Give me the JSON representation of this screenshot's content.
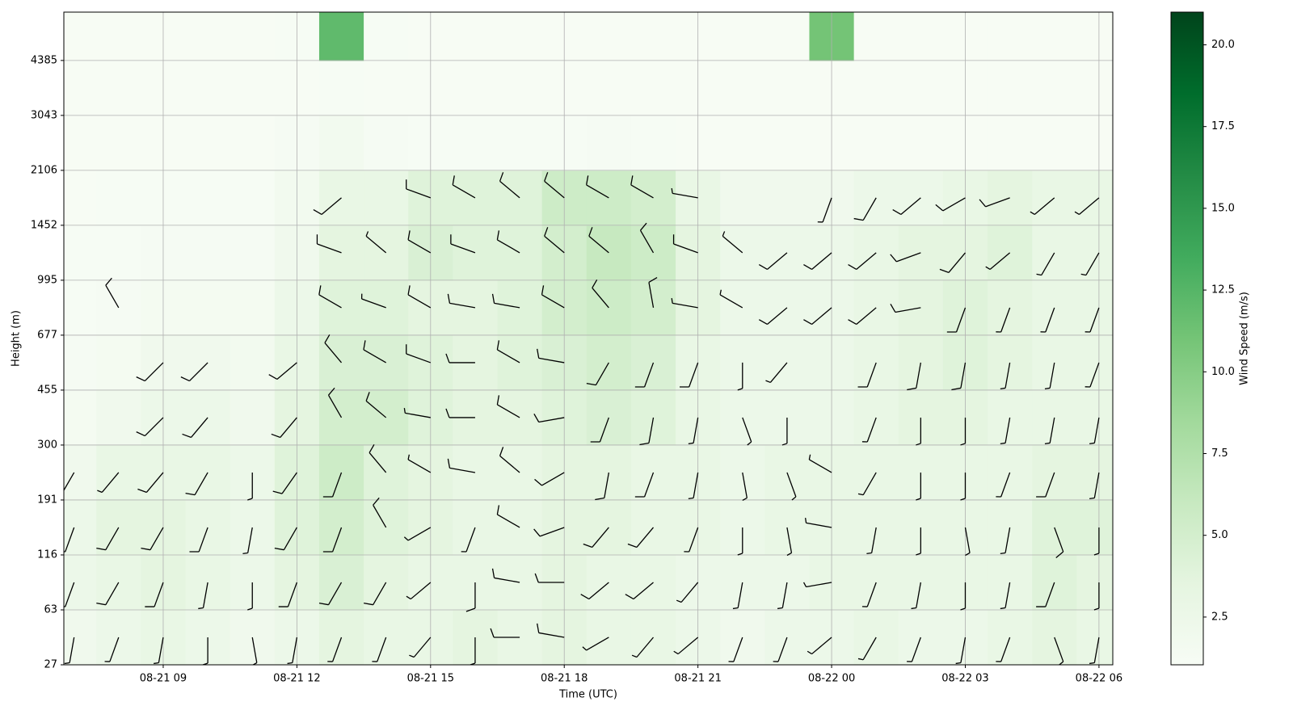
{
  "chart_data": {
    "type": "barbs",
    "xlabel": "Time (UTC)",
    "ylabel": "Height (m)",
    "colorbar_label": "Wind Speed (m/s)",
    "xlim": [
      6.77,
      30.31
    ],
    "xticks": [
      {
        "value": 9,
        "label": "08-21 09"
      },
      {
        "value": 12,
        "label": "08-21 12"
      },
      {
        "value": 15,
        "label": "08-21 15"
      },
      {
        "value": 18,
        "label": "08-21 18"
      },
      {
        "value": 21,
        "label": "08-21 21"
      },
      {
        "value": 24,
        "label": "08-22 00"
      },
      {
        "value": 27,
        "label": "08-22 03"
      },
      {
        "value": 30,
        "label": "08-22 06"
      }
    ],
    "ylim": [
      0,
      11.88
    ],
    "yticks": [
      {
        "value": 0,
        "label": "27"
      },
      {
        "value": 1,
        "label": "63"
      },
      {
        "value": 2,
        "label": "116"
      },
      {
        "value": 3,
        "label": "191"
      },
      {
        "value": 4,
        "label": "300"
      },
      {
        "value": 5,
        "label": "455"
      },
      {
        "value": 6,
        "label": "677"
      },
      {
        "value": 7,
        "label": "995"
      },
      {
        "value": 8,
        "label": "1452"
      },
      {
        "value": 9,
        "label": "2106"
      },
      {
        "value": 10,
        "label": "3043"
      },
      {
        "value": 11,
        "label": "4385"
      }
    ],
    "grid": true,
    "clim": [
      1.04,
      21.0
    ],
    "cticks": [
      {
        "value": 2.5,
        "label": "2.5"
      },
      {
        "value": 5,
        "label": "5.0"
      },
      {
        "value": 7.5,
        "label": "7.5"
      },
      {
        "value": 10,
        "label": "10.0"
      },
      {
        "value": 12.5,
        "label": "12.5"
      },
      {
        "value": 15,
        "label": "15.0"
      },
      {
        "value": 17.5,
        "label": "17.5"
      },
      {
        "value": 20,
        "label": "20.0"
      }
    ],
    "colormap": [
      "#f7fcf5",
      "#e5f5e0",
      "#c7e9c0",
      "#a1d99b",
      "#74c476",
      "#41ab5d",
      "#238b45",
      "#006d2c",
      "#00441b"
    ],
    "barb_color": "#000000",
    "heatmap": {
      "x": [
        7,
        8,
        9,
        10,
        11,
        12,
        13,
        14,
        15,
        16,
        17,
        18,
        19,
        20,
        21,
        22,
        23,
        24,
        25,
        26,
        27,
        28,
        29,
        30
      ],
      "levels": [
        0,
        1,
        2,
        3,
        4,
        5,
        6,
        7,
        8,
        9,
        10,
        11
      ],
      "values": [
        [
          2,
          2.5,
          3,
          2.5,
          2,
          2.5,
          3.5,
          3,
          3,
          3.5,
          3,
          3.5,
          3,
          3,
          2.5,
          2,
          2.5,
          2.5,
          3,
          2.5,
          2.5,
          3,
          3.5,
          3
        ],
        [
          2.5,
          3,
          3.5,
          3,
          2.5,
          3.5,
          4.5,
          3.5,
          3,
          3,
          3,
          3.5,
          3,
          3,
          2.5,
          2.5,
          2.5,
          3,
          3,
          3,
          3,
          3,
          4,
          3.5
        ],
        [
          2.5,
          3.5,
          3.5,
          3,
          2.5,
          4,
          5,
          4,
          3.5,
          3,
          3,
          3.5,
          3.5,
          3,
          3,
          2.5,
          3,
          3,
          3,
          3,
          3,
          3,
          4,
          4
        ],
        [
          2,
          3,
          3,
          3,
          2.5,
          4,
          5.5,
          4,
          3.5,
          3,
          3,
          3.5,
          3.5,
          3,
          3,
          2.5,
          3,
          3,
          3,
          3,
          3,
          3,
          3.5,
          3.5
        ],
        [
          1.5,
          2,
          2.5,
          2.5,
          2,
          3.5,
          5,
          5,
          4,
          3.5,
          3.5,
          4,
          4.5,
          4,
          3,
          2.5,
          2.5,
          2.5,
          3,
          3.5,
          3.5,
          3,
          3,
          3
        ],
        [
          1.3,
          1.5,
          2,
          2,
          1.8,
          3,
          4.5,
          4.5,
          4,
          3.5,
          4,
          4.5,
          5,
          4.5,
          3,
          2.5,
          2.5,
          2.5,
          3,
          3.5,
          4,
          3.5,
          3,
          3
        ],
        [
          1.2,
          1.3,
          1.5,
          1.5,
          1.5,
          2.5,
          4,
          4,
          3.5,
          3.5,
          4,
          5,
          5.5,
          5,
          3.5,
          2.5,
          2.5,
          2.5,
          3,
          3.5,
          4,
          3.5,
          3,
          3
        ],
        [
          1.2,
          1.2,
          1.3,
          1.3,
          1.3,
          2,
          3.5,
          3.5,
          4.5,
          4,
          4,
          5,
          6,
          5.5,
          3.5,
          2.5,
          2.5,
          2.5,
          3,
          3.5,
          3.5,
          4,
          3,
          3
        ],
        [
          1.1,
          1.2,
          1.2,
          1.2,
          1.2,
          1.8,
          3,
          3,
          4,
          4,
          4,
          5.5,
          5.5,
          5,
          3,
          2,
          2,
          2,
          2.5,
          2.5,
          3,
          3.5,
          3,
          3
        ],
        [
          1.1,
          1.1,
          1.1,
          1.1,
          1.1,
          1.3,
          1.8,
          1.3,
          1.2,
          1.2,
          1.2,
          1.2,
          1.3,
          1.2,
          1.1,
          1.1,
          1.1,
          1.1,
          1.1,
          1.1,
          1.1,
          1.1,
          1.1,
          1.1
        ],
        [
          1.1,
          1.1,
          1.1,
          1.1,
          1.1,
          1.1,
          1.2,
          1.1,
          1.1,
          1.1,
          1.1,
          1.1,
          1.1,
          1.1,
          1.1,
          1.1,
          1.1,
          1.1,
          1.1,
          1.1,
          1.1,
          1.1,
          1.1,
          1.1
        ],
        [
          1.1,
          1.1,
          1.1,
          1.1,
          1.1,
          1.2,
          12,
          1.2,
          1.1,
          1.1,
          1.1,
          1.1,
          1.1,
          1.1,
          1.1,
          1.1,
          1.1,
          11,
          1.1,
          1.1,
          1.1,
          1.1,
          1.1,
          1.1
        ]
      ]
    },
    "barb_levels": [
      0.5,
      1.5,
      2.5,
      3.5,
      4.5,
      5.5,
      6.5,
      7.5,
      8.5
    ],
    "barbs": [
      {
        "x": 7,
        "speed": [
          3,
          4,
          4,
          3,
          null,
          null,
          null,
          null,
          null
        ],
        "direction": [
          190,
          200,
          200,
          210,
          null,
          null,
          null,
          null,
          null
        ]
      },
      {
        "x": 8,
        "speed": [
          4,
          5,
          5,
          4,
          null,
          null,
          5,
          null,
          null
        ],
        "direction": [
          200,
          210,
          210,
          220,
          null,
          null,
          330,
          null,
          null
        ]
      },
      {
        "x": 9,
        "speed": [
          4,
          5,
          5,
          5,
          5,
          5,
          null,
          null,
          null
        ],
        "direction": [
          190,
          200,
          210,
          220,
          225,
          225,
          null,
          null,
          null
        ]
      },
      {
        "x": 10,
        "speed": [
          4,
          4,
          5,
          5,
          6,
          6,
          null,
          null,
          null
        ],
        "direction": [
          180,
          190,
          200,
          210,
          220,
          225,
          null,
          null,
          null
        ]
      },
      {
        "x": 11,
        "speed": [
          3,
          3,
          4,
          3,
          null,
          null,
          null,
          null,
          null
        ],
        "direction": [
          170,
          180,
          190,
          180,
          null,
          null,
          null,
          null,
          null
        ]
      },
      {
        "x": 12,
        "speed": [
          4,
          5,
          6,
          6,
          5,
          5,
          null,
          null,
          null
        ],
        "direction": [
          190,
          200,
          210,
          215,
          220,
          230,
          null,
          null,
          null
        ]
      },
      {
        "x": 13,
        "speed": [
          4,
          5,
          6,
          7,
          6,
          5,
          5,
          5,
          6
        ],
        "direction": [
          200,
          210,
          200,
          200,
          330,
          320,
          300,
          290,
          230
        ]
      },
      {
        "x": 14,
        "speed": [
          4,
          5,
          5,
          5,
          5,
          5,
          4,
          4,
          null
        ],
        "direction": [
          200,
          210,
          330,
          320,
          310,
          300,
          290,
          310,
          null
        ]
      },
      {
        "x": 15,
        "speed": [
          3,
          4,
          4,
          4,
          4,
          5,
          5,
          5,
          5
        ],
        "direction": [
          220,
          230,
          240,
          300,
          280,
          290,
          300,
          300,
          290
        ]
      },
      {
        "x": 16,
        "speed": [
          4,
          5,
          4,
          5,
          5,
          5,
          5,
          6,
          6
        ],
        "direction": [
          180,
          180,
          200,
          280,
          270,
          270,
          280,
          290,
          300
        ]
      },
      {
        "x": 17,
        "speed": [
          5,
          6,
          5,
          5,
          5,
          6,
          5,
          6,
          6
        ],
        "direction": [
          270,
          280,
          300,
          310,
          300,
          300,
          280,
          300,
          310
        ]
      },
      {
        "x": 18,
        "speed": [
          6,
          5,
          5,
          5,
          5,
          6,
          6,
          6,
          6
        ],
        "direction": [
          280,
          270,
          250,
          240,
          260,
          280,
          300,
          310,
          310
        ]
      },
      {
        "x": 19,
        "speed": [
          4,
          5,
          5,
          5,
          5,
          6,
          6,
          7,
          7
        ],
        "direction": [
          240,
          230,
          220,
          190,
          200,
          210,
          320,
          310,
          300
        ]
      },
      {
        "x": 20,
        "speed": [
          4,
          5,
          5,
          5,
          5,
          6,
          6,
          6,
          6
        ],
        "direction": [
          220,
          230,
          220,
          200,
          190,
          200,
          350,
          330,
          300
        ]
      },
      {
        "x": 21,
        "speed": [
          3,
          4,
          4,
          4,
          4,
          5,
          4,
          5,
          4
        ],
        "direction": [
          230,
          220,
          200,
          190,
          190,
          200,
          280,
          290,
          280
        ]
      },
      {
        "x": 22,
        "speed": [
          3,
          4,
          4,
          4,
          4,
          4,
          4,
          4,
          null
        ],
        "direction": [
          200,
          190,
          180,
          170,
          160,
          180,
          300,
          310,
          null
        ]
      },
      {
        "x": 23,
        "speed": [
          3,
          3,
          4,
          4,
          4,
          4,
          5,
          5,
          null
        ],
        "direction": [
          200,
          190,
          170,
          160,
          180,
          220,
          230,
          230,
          null
        ]
      },
      {
        "x": 24,
        "speed": [
          3,
          4,
          3,
          3,
          null,
          null,
          5,
          5,
          4
        ],
        "direction": [
          230,
          260,
          280,
          300,
          null,
          null,
          230,
          230,
          200
        ]
      },
      {
        "x": 25,
        "speed": [
          3,
          4,
          4,
          4,
          4,
          5,
          5,
          5,
          5
        ],
        "direction": [
          210,
          200,
          190,
          210,
          200,
          200,
          230,
          230,
          210
        ]
      },
      {
        "x": 26,
        "speed": [
          3,
          4,
          4,
          4,
          4,
          5,
          5,
          6,
          5
        ],
        "direction": [
          200,
          190,
          180,
          180,
          180,
          190,
          260,
          250,
          230
        ]
      },
      {
        "x": 27,
        "speed": [
          3,
          4,
          4,
          4,
          4,
          5,
          5,
          5,
          5
        ],
        "direction": [
          190,
          180,
          170,
          180,
          180,
          190,
          200,
          220,
          240
        ]
      },
      {
        "x": 28,
        "speed": [
          3,
          3,
          4,
          3,
          3,
          4,
          4,
          4,
          5
        ],
        "direction": [
          200,
          190,
          190,
          200,
          190,
          190,
          200,
          230,
          250
        ]
      },
      {
        "x": 29,
        "speed": [
          4,
          5,
          5,
          5,
          4,
          4,
          4,
          4,
          4
        ],
        "direction": [
          160,
          200,
          160,
          200,
          190,
          190,
          200,
          210,
          230
        ]
      },
      {
        "x": 30,
        "speed": [
          3,
          3,
          4,
          4,
          4,
          4,
          4,
          4,
          4
        ],
        "direction": [
          190,
          180,
          180,
          190,
          190,
          200,
          200,
          210,
          230
        ]
      }
    ]
  }
}
